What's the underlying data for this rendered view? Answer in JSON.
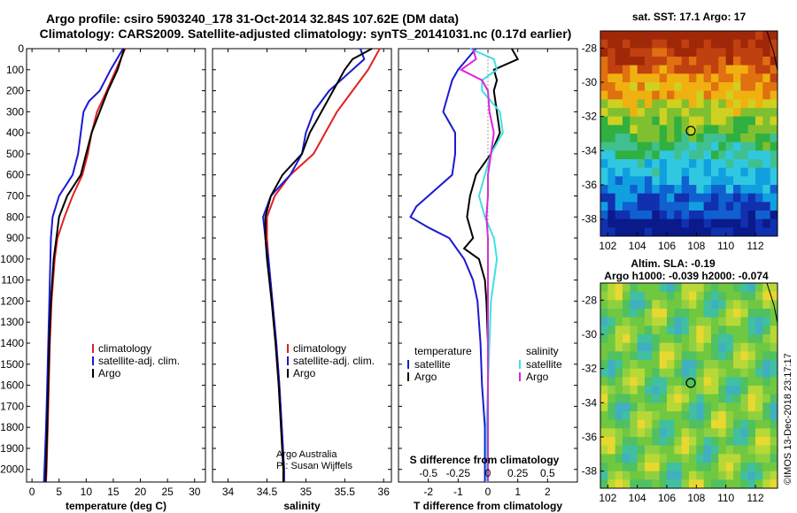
{
  "title": {
    "line1": "Argo profile: csiro 5903240_178 31-Oct-2014 32.84S 107.62E (DM data)",
    "line2": "Climatology: CARS2009. Satellite-adjusted climatology: synTS_20141031.nc (0.17d earlier)"
  },
  "colors": {
    "clim": "#e02020",
    "sat": "#1a1ad0",
    "argo": "#000000",
    "sclim": "#40e0e0",
    "sargo": "#e020e0"
  },
  "chart_data": [
    {
      "type": "line",
      "name": "temperature",
      "xlabel": "temperature (deg C)",
      "xlim": [
        -1,
        32
      ],
      "xticks": [
        "0",
        "5",
        "10",
        "15",
        "20",
        "25",
        "30"
      ],
      "xtick_values": [
        0,
        5,
        10,
        15,
        20,
        25,
        30
      ],
      "ylim": [
        0,
        2060
      ],
      "yticks": [
        "0",
        "100",
        "200",
        "300",
        "400",
        "500",
        "600",
        "700",
        "800",
        "900",
        "1000",
        "1100",
        "1200",
        "1300",
        "1400",
        "1500",
        "1600",
        "1700",
        "1800",
        "1900",
        "2000"
      ],
      "ytick_values": [
        0,
        100,
        200,
        300,
        400,
        500,
        600,
        700,
        800,
        900,
        1000,
        1100,
        1200,
        1300,
        1400,
        1500,
        1600,
        1700,
        1800,
        1900,
        2000
      ],
      "legend": [
        "climatology",
        "satellite-adj. clim.",
        "Argo"
      ],
      "series": [
        {
          "name": "climatology",
          "color_key": "clim",
          "depth": [
            0,
            100,
            200,
            300,
            400,
            500,
            600,
            700,
            800,
            900,
            1000,
            1200,
            1400,
            1600,
            1800,
            2000,
            2060
          ],
          "values": [
            17.2,
            15.5,
            13.8,
            12.0,
            11.0,
            10.3,
            9.3,
            7.5,
            6.0,
            4.7,
            4.2,
            3.6,
            3.3,
            3.1,
            2.9,
            2.7,
            2.6
          ]
        },
        {
          "name": "satellite-adj. clim.",
          "color_key": "sat",
          "depth": [
            0,
            100,
            150,
            200,
            250,
            300,
            400,
            500,
            600,
            700,
            800,
            900,
            1000,
            1200,
            1400,
            1600,
            1800,
            2000,
            2060
          ],
          "values": [
            16.8,
            14.5,
            13.5,
            12.5,
            10.5,
            9.5,
            9.0,
            8.5,
            7.5,
            5.0,
            3.8,
            3.5,
            3.4,
            3.2,
            3.0,
            2.8,
            2.6,
            2.3,
            2.2
          ]
        },
        {
          "name": "Argo",
          "color_key": "argo",
          "depth": [
            0,
            100,
            200,
            300,
            400,
            500,
            600,
            700,
            800,
            900,
            1000,
            1200,
            1400,
            1600,
            1800,
            2000,
            2060
          ],
          "values": [
            17.0,
            15.8,
            14.0,
            12.5,
            11.0,
            10.0,
            9.0,
            6.5,
            5.0,
            4.5,
            4.0,
            3.5,
            3.2,
            3.0,
            2.8,
            2.6,
            2.5
          ]
        }
      ]
    },
    {
      "type": "line",
      "name": "salinity",
      "xlabel": "salinity",
      "xlim": [
        33.8,
        36.1
      ],
      "xticks": [
        "34",
        "34.5",
        "35",
        "35.5",
        "36"
      ],
      "xtick_values": [
        34,
        34.5,
        35,
        35.5,
        36
      ],
      "ylim": [
        0,
        2060
      ],
      "legend": [
        "climatology",
        "satellite-adj. clim.",
        "Argo"
      ],
      "annotation": [
        "Argo Australia",
        "PI: Susan Wijffels"
      ],
      "series": [
        {
          "name": "climatology",
          "color_key": "clim",
          "depth": [
            0,
            100,
            200,
            300,
            400,
            500,
            600,
            700,
            800,
            900,
            1000,
            1200,
            1400,
            1600,
            1800,
            2000,
            2060
          ],
          "values": [
            35.95,
            35.8,
            35.6,
            35.4,
            35.25,
            35.1,
            34.8,
            34.6,
            34.5,
            34.5,
            34.52,
            34.57,
            34.62,
            34.66,
            34.69,
            34.72,
            34.72
          ]
        },
        {
          "name": "satellite-adj. clim.",
          "color_key": "sat",
          "depth": [
            0,
            50,
            100,
            200,
            300,
            400,
            500,
            600,
            700,
            800,
            900,
            1000,
            1200,
            1400,
            1600,
            1800,
            2000,
            2060
          ],
          "values": [
            35.7,
            35.75,
            35.6,
            35.3,
            35.1,
            35.0,
            34.95,
            34.8,
            34.55,
            34.45,
            34.48,
            34.52,
            34.57,
            34.62,
            34.66,
            34.69,
            34.72,
            34.72
          ]
        },
        {
          "name": "Argo",
          "color_key": "argo",
          "depth": [
            0,
            50,
            100,
            200,
            300,
            400,
            500,
            600,
            700,
            800,
            900,
            1000,
            1200,
            1400,
            1600,
            1800,
            2000,
            2060
          ],
          "values": [
            35.85,
            35.6,
            35.5,
            35.35,
            35.2,
            35.05,
            34.95,
            34.7,
            34.55,
            34.48,
            34.48,
            34.5,
            34.56,
            34.61,
            34.65,
            34.68,
            34.71,
            34.71
          ]
        }
      ]
    },
    {
      "type": "line",
      "name": "differences",
      "xlabel": "T difference from climatology",
      "xlabel2": "S difference from climatology",
      "xlim": [
        -3,
        3
      ],
      "xticks": [
        "-2",
        "-1",
        "0",
        "1",
        "2"
      ],
      "xtick_values": [
        -2,
        -1,
        0,
        1,
        2
      ],
      "xticks2": [
        "-0.5",
        "-0.25",
        "0",
        "0.25",
        "0.5"
      ],
      "xtick2_values": [
        -2,
        -1,
        0,
        1,
        2
      ],
      "legend_t_title": "temperature",
      "legend_s_title": "salinity",
      "legend_t": [
        "satellite",
        "Argo"
      ],
      "legend_s": [
        "satellite",
        "Argo"
      ],
      "series": [
        {
          "name": "T satellite",
          "color_key": "sat",
          "depth": [
            0,
            50,
            100,
            150,
            200,
            300,
            400,
            500,
            600,
            700,
            750,
            800,
            850,
            900,
            1000,
            1100,
            1200,
            1400,
            1600,
            1800,
            2000,
            2060
          ],
          "values": [
            -0.4,
            -0.7,
            -1.0,
            -1.2,
            -1.3,
            -1.5,
            -1.1,
            -1.1,
            -1.2,
            -2.0,
            -2.4,
            -2.6,
            -2.0,
            -1.3,
            -0.8,
            -0.5,
            -0.35,
            -0.25,
            -0.2,
            -0.1,
            -0.1,
            -0.1
          ]
        },
        {
          "name": "T Argo",
          "color_key": "argo",
          "depth": [
            0,
            50,
            100,
            150,
            200,
            300,
            400,
            500,
            600,
            700,
            800,
            900,
            950,
            1000,
            1100,
            1200,
            1400,
            1600,
            1800,
            2000,
            2060
          ],
          "values": [
            0.8,
            1.0,
            0.2,
            0.3,
            0.2,
            0.3,
            0.4,
            0.1,
            -0.4,
            -0.6,
            -0.7,
            -0.5,
            -0.8,
            -0.3,
            -0.1,
            -0.05,
            0.0,
            0.0,
            0.0,
            0.0,
            0.0
          ]
        },
        {
          "name": "S satellite",
          "color_key": "sclim",
          "depth": [
            0,
            50,
            100,
            150,
            200,
            300,
            400,
            500,
            600,
            700,
            800,
            900,
            1000,
            1200,
            1400,
            1600,
            1800,
            2000,
            2060
          ],
          "values": [
            -0.6,
            0.2,
            0.3,
            -0.2,
            -0.2,
            0.4,
            0.5,
            0.1,
            -0.1,
            -0.3,
            -0.1,
            0.2,
            0.3,
            0.1,
            0.05,
            0.0,
            -0.05,
            -0.05,
            -0.05
          ]
        },
        {
          "name": "S Argo",
          "color_key": "sargo",
          "depth": [
            0,
            50,
            100,
            150,
            200,
            300,
            400,
            500,
            600,
            700,
            800,
            900,
            1000,
            1200,
            1400,
            1600,
            1800,
            2000,
            2060
          ],
          "values": [
            -0.5,
            -0.4,
            -0.9,
            -0.2,
            0.0,
            0.05,
            0.2,
            0.1,
            0.0,
            0.0,
            -0.05,
            0.0,
            0.0,
            0.0,
            0.0,
            0.0,
            0.0,
            0.0,
            0.0
          ]
        }
      ]
    },
    {
      "type": "heatmap",
      "name": "sst-map",
      "title": "sat. SST: 17.1 Argo: 17",
      "xlim": [
        101.5,
        113.5
      ],
      "ylim": [
        -39,
        -27
      ],
      "xticks": [
        "102",
        "104",
        "106",
        "108",
        "110",
        "112"
      ],
      "xtick_values": [
        102,
        104,
        106,
        108,
        110,
        112
      ],
      "yticks": [
        "-28",
        "-30",
        "-32",
        "-34",
        "-36",
        "-38"
      ],
      "ytick_values": [
        -28,
        -30,
        -32,
        -34,
        -36,
        -38
      ],
      "marker": {
        "lon": 107.62,
        "lat": -32.84
      }
    },
    {
      "type": "heatmap",
      "name": "sla-map",
      "title": "Altim. SLA: -0.19",
      "subtitle": "Argo h1000: -0.039 h2000: -0.074",
      "xlim": [
        101.5,
        113.5
      ],
      "ylim": [
        -39,
        -27
      ],
      "xticks": [
        "102",
        "104",
        "106",
        "108",
        "110",
        "112"
      ],
      "xtick_values": [
        102,
        104,
        106,
        108,
        110,
        112
      ],
      "yticks": [
        "-28",
        "-30",
        "-32",
        "-34",
        "-36",
        "-38"
      ],
      "ytick_values": [
        -28,
        -30,
        -32,
        -34,
        -36,
        -38
      ],
      "marker": {
        "lon": 107.62,
        "lat": -32.84
      },
      "watermark": "©IMOS 13-Dec-2018 23:17:17"
    }
  ]
}
